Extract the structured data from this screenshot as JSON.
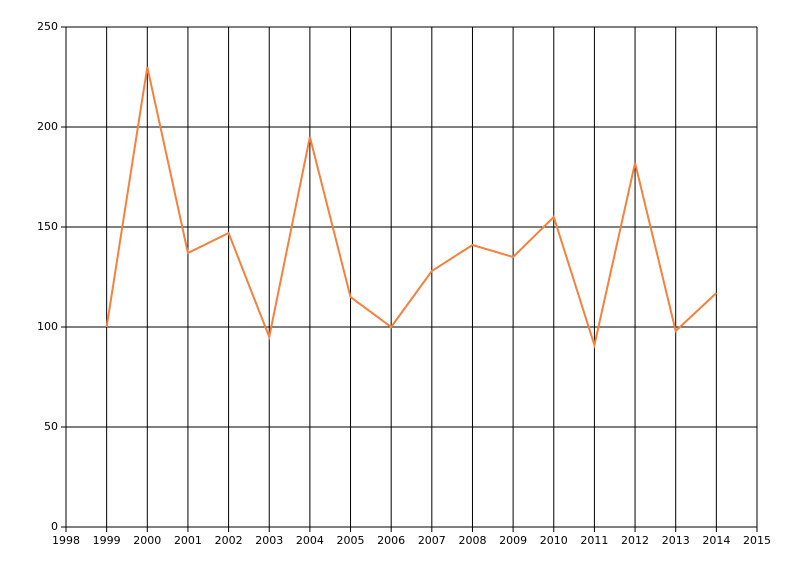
{
  "chart_data": {
    "type": "line",
    "x": [
      1999,
      2000,
      2001,
      2002,
      2003,
      2004,
      2005,
      2006,
      2007,
      2008,
      2009,
      2010,
      2011,
      2012,
      2013,
      2014
    ],
    "series": [
      {
        "color": "#f5813f",
        "values": [
          100,
          230,
          137,
          147,
          95,
          195,
          115,
          100,
          128,
          141,
          135,
          155,
          91,
          182,
          98,
          117
        ]
      }
    ],
    "xlim": [
      1998,
      2015
    ],
    "xticks": [
      1998,
      1999,
      2000,
      2001,
      2002,
      2003,
      2004,
      2005,
      2006,
      2007,
      2008,
      2009,
      2010,
      2011,
      2012,
      2013,
      2014,
      2015
    ],
    "ylim": [
      0,
      250
    ],
    "yticks": [
      0,
      50,
      100,
      150,
      200,
      250
    ],
    "grid": true
  }
}
